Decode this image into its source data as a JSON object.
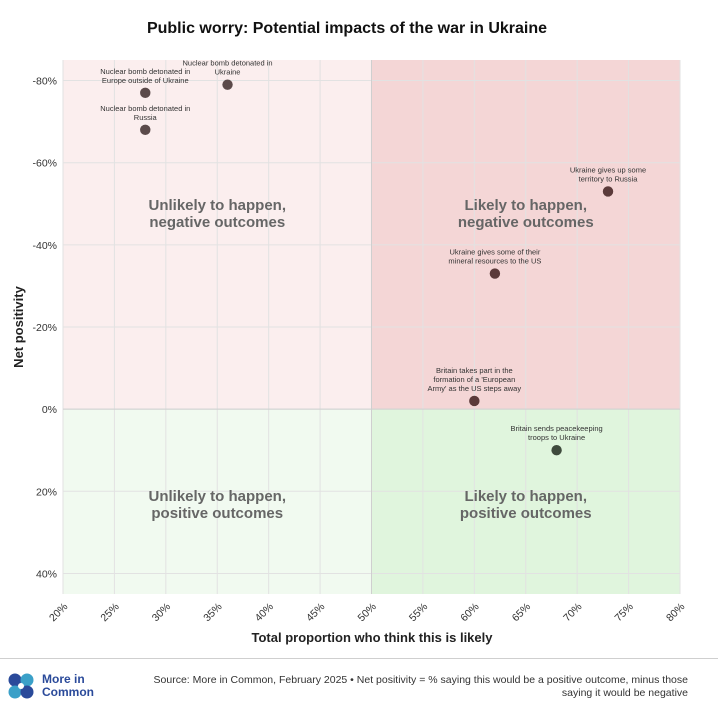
{
  "chart_data": {
    "type": "scatter",
    "title": "Public worry: Potential impacts of the war in Ukraine",
    "xlabel": "Total proportion who think this is likely",
    "ylabel": "Net positivity",
    "xlim": [
      20,
      80
    ],
    "ylim": [
      -85,
      45
    ],
    "y_inverted": true,
    "x_ticks": [
      "20%",
      "25%",
      "30%",
      "35%",
      "40%",
      "45%",
      "50%",
      "55%",
      "60%",
      "65%",
      "70%",
      "75%",
      "80%"
    ],
    "x_tick_values": [
      20,
      25,
      30,
      35,
      40,
      45,
      50,
      55,
      60,
      65,
      70,
      75,
      80
    ],
    "y_ticks": [
      "-80%",
      "-60%",
      "-40%",
      "-20%",
      "0%",
      "20%",
      "40%"
    ],
    "y_tick_values": [
      -80,
      -60,
      -40,
      -20,
      0,
      20,
      40
    ],
    "grid": true,
    "quadrant_split": {
      "x": 50,
      "y": 0
    },
    "quadrants": [
      {
        "label_line1": "Unlikely to happen,",
        "label_line2": "negative outcomes",
        "color": "#fbeeee"
      },
      {
        "label_line1": "Likely to happen,",
        "label_line2": "negative outcomes",
        "color": "#f4d6d6"
      },
      {
        "label_line1": "Unlikely to happen,",
        "label_line2": "positive outcomes",
        "color": "#f1faf0"
      },
      {
        "label_line1": "Likely to happen,",
        "label_line2": "positive outcomes",
        "color": "#e0f5dd"
      }
    ],
    "points": [
      {
        "label_lines": [
          "Nuclear bomb detonated in",
          "Europe outside of Ukraine"
        ],
        "x": 28,
        "y": -77,
        "color": "#5b4a4a"
      },
      {
        "label_lines": [
          "Nuclear bomb detonated in",
          "Ukraine"
        ],
        "x": 36,
        "y": -79,
        "color": "#5b4a4a"
      },
      {
        "label_lines": [
          "Nuclear bomb detonated in",
          "Russia"
        ],
        "x": 28,
        "y": -68,
        "color": "#5b4a4a"
      },
      {
        "label_lines": [
          "Ukraine gives up some",
          "territory to Russia"
        ],
        "x": 73,
        "y": -53,
        "color": "#5b3a3a"
      },
      {
        "label_lines": [
          "Ukraine gives some of their",
          "mineral resources to the US"
        ],
        "x": 62,
        "y": -33,
        "color": "#5b3a3a"
      },
      {
        "label_lines": [
          "Britain takes part in the",
          "formation of a 'European",
          "Army' as the US steps away"
        ],
        "x": 60,
        "y": -2,
        "color": "#5b3a3a"
      },
      {
        "label_lines": [
          "Britain sends peacekeeping",
          "troops to Ukraine"
        ],
        "x": 68,
        "y": 10,
        "color": "#3e4a3c"
      }
    ]
  },
  "footer": {
    "logo_line1": "More in",
    "logo_line2": "Common",
    "source": "Source: More in Common, February 2025 • Net positivity = % saying this would be a positive outcome, minus those saying it would be negative"
  },
  "colors": {
    "grid": "#e2e2e2",
    "logo_blue": "#2a4a9a",
    "logo_teal": "#3aa0c8"
  }
}
